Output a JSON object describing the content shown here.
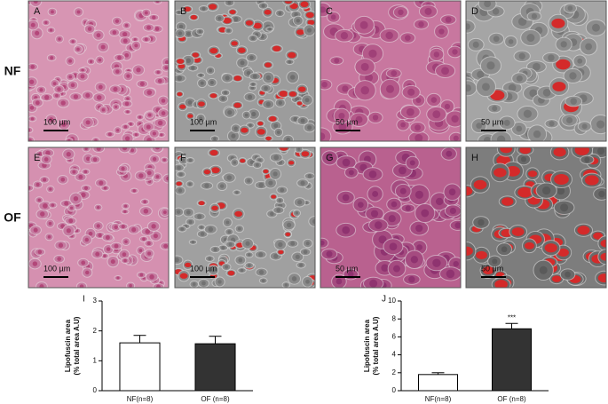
{
  "figure": {
    "row_labels": [
      "NF",
      "OF"
    ],
    "panels": [
      {
        "letter": "A",
        "scale_bar": "100 µm"
      },
      {
        "letter": "B",
        "scale_bar": "100 µm"
      },
      {
        "letter": "C",
        "scale_bar": "50 µm"
      },
      {
        "letter": "D",
        "scale_bar": "50 µm"
      },
      {
        "letter": "E",
        "scale_bar": "100 µm"
      },
      {
        "letter": "F",
        "scale_bar": "100 µm"
      },
      {
        "letter": "G",
        "scale_bar": "50 µm"
      },
      {
        "letter": "H",
        "scale_bar": "50 µm"
      }
    ]
  },
  "chart_data": [
    {
      "type": "bar",
      "panel_label": "I",
      "y_label": [
        "Lipofuscin area",
        "(% total area A.U)"
      ],
      "categories": [
        "NF(n=8)",
        "OF (n=8)"
      ],
      "values": [
        1.6,
        1.57
      ],
      "errors": [
        0.25,
        0.25
      ],
      "colors": [
        "#ffffff",
        "#333333"
      ],
      "ylim": [
        0,
        3
      ],
      "yticks": [
        0,
        1,
        2,
        3
      ]
    },
    {
      "type": "bar",
      "panel_label": "J",
      "y_label": [
        "Lipofuscin area",
        "(% total area A.U)"
      ],
      "categories": [
        "NF(n=8)",
        "OF (n=8)"
      ],
      "values": [
        1.8,
        6.9
      ],
      "errors": [
        0.2,
        0.6
      ],
      "colors": [
        "#ffffff",
        "#333333"
      ],
      "ylim": [
        0,
        10
      ],
      "yticks": [
        0,
        2,
        4,
        6,
        8,
        10
      ],
      "annotation": "***"
    }
  ]
}
